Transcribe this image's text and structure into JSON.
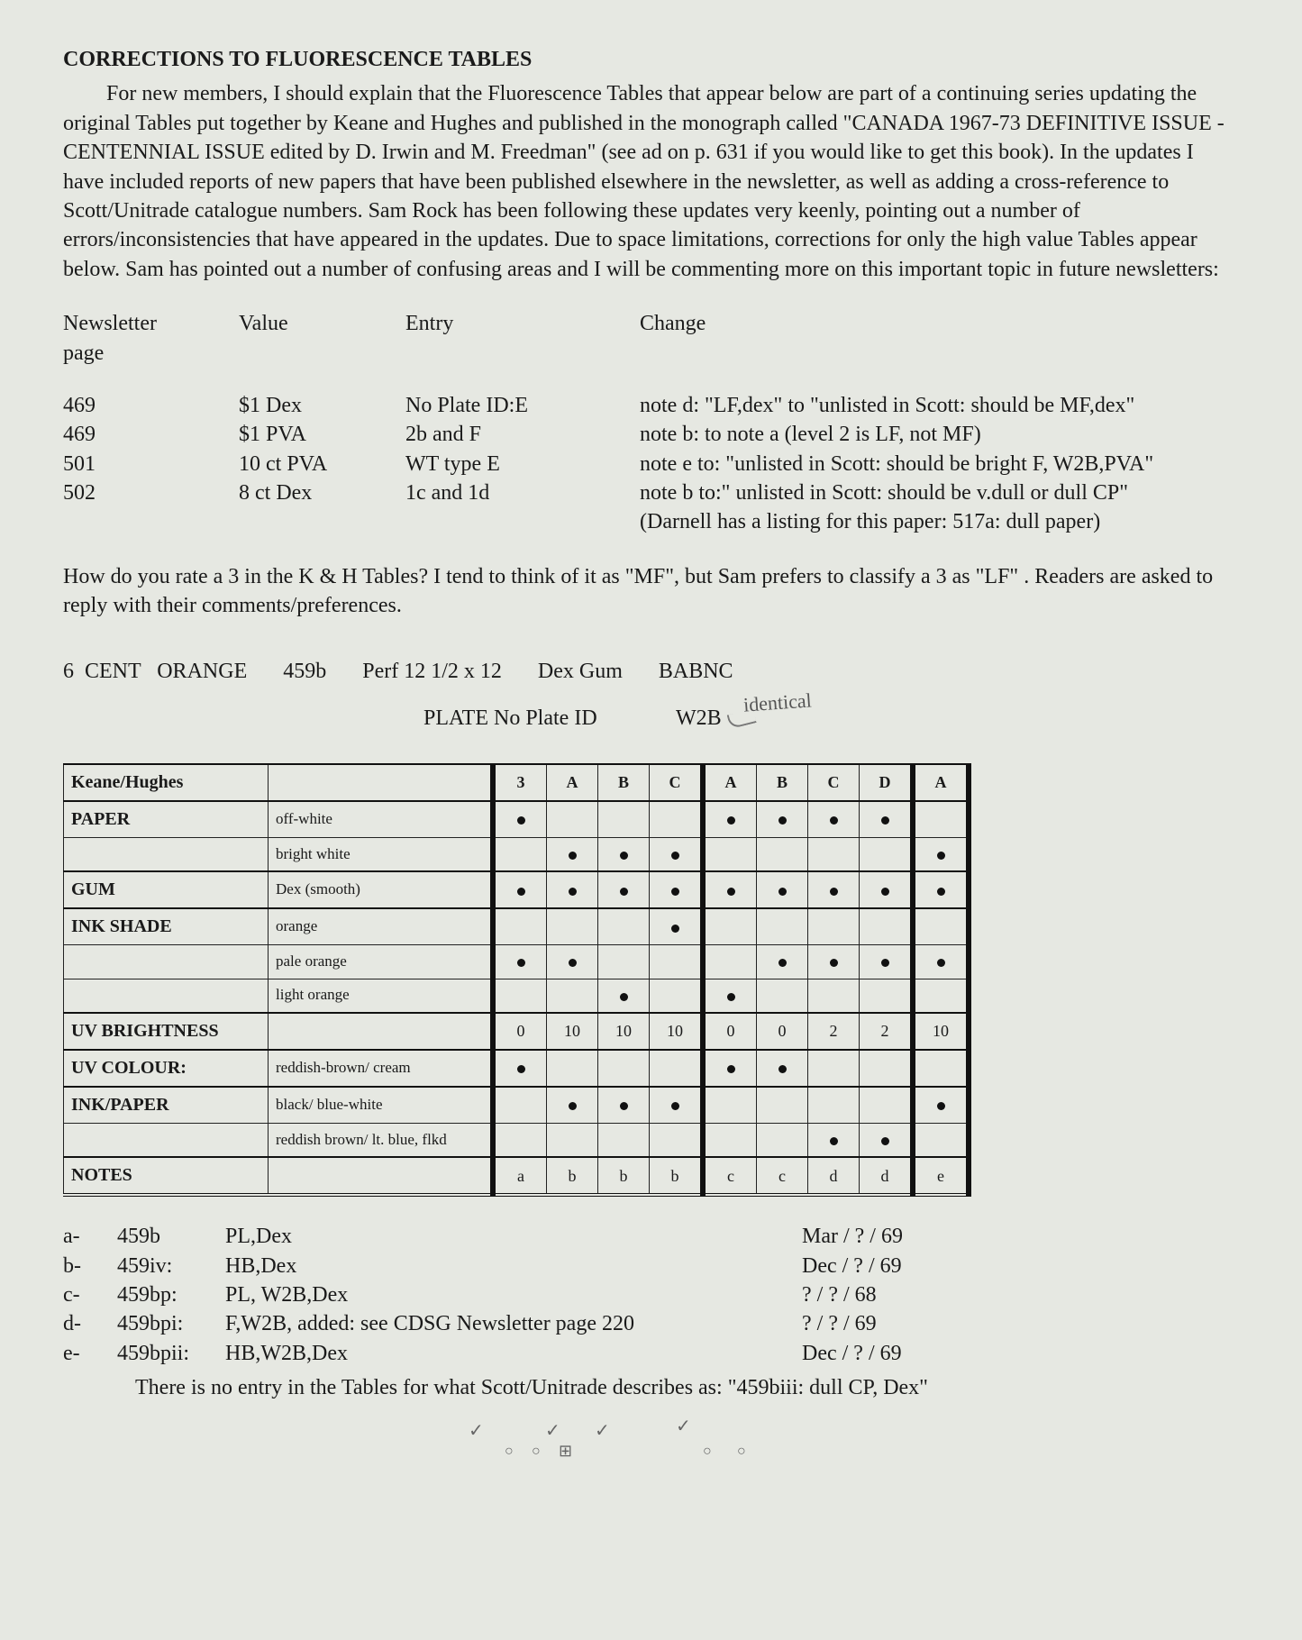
{
  "title": "CORRECTIONS TO FLUORESCENCE TABLES",
  "intro": "For new members, I should explain that the Fluorescence Tables that appear below are part of a continuing series updating the original Tables put together by Keane and Hughes and published in the monograph  called \"CANADA 1967-73 DEFINITIVE ISSUE - CENTENNIAL ISSUE edited by D. Irwin and M. Freedman\" (see ad on p. 631 if you would like to get this book). In the updates I have included reports of new papers that have been published elsewhere in the newsletter, as well as adding a cross-reference to Scott/Unitrade catalogue numbers. Sam Rock has been following these updates very keenly, pointing out a number of errors/inconsistencies that have appeared in the updates. Due to space limitations, corrections for only the high value Tables appear below. Sam has pointed out a number of confusing areas and I will be commenting more on this important topic in future newsletters:",
  "corrections": {
    "headers": {
      "c1a": "Newsletter",
      "c1b": "page",
      "c2": "Value",
      "c3": "Entry",
      "c4": "Change"
    },
    "rows": [
      {
        "page": "469",
        "value": "$1 Dex",
        "entry": "No Plate ID:E",
        "change": "note d: \"LF,dex\" to \"unlisted in Scott: should be MF,dex\""
      },
      {
        "page": "469",
        "value": "$1 PVA",
        "entry": "2b and F",
        "change": "note b: to note a (level 2 is LF, not MF)"
      },
      {
        "page": "501",
        "value": "10 ct PVA",
        "entry": "WT type E",
        "change": "note e to: \"unlisted in Scott: should be bright F, W2B,PVA\""
      },
      {
        "page": "502",
        "value": "8 ct Dex",
        "entry": "1c and 1d",
        "change": "note b to:\" unlisted in Scott: should be v.dull or dull CP\""
      }
    ],
    "extra": "(Darnell has a listing for this paper: 517a: dull paper)"
  },
  "question": "How do you rate a 3 in the K & H Tables? I tend to think of it as \"MF\", but Sam prefers to classify a 3 as \"LF\" . Readers are asked to reply with their comments/preferences.",
  "spec": {
    "s1": "6  CENT   ORANGE",
    "s2": "459b",
    "s3": "Perf 12 1/2 x 12",
    "s4": "Dex Gum",
    "s5": "BABNC"
  },
  "plate": {
    "label": "PLATE  No Plate ID",
    "w2b": "W2B",
    "hand": "identical"
  },
  "matrix": {
    "colHeaders": [
      "3",
      "A",
      "B",
      "C",
      "A",
      "B",
      "C",
      "D",
      "A"
    ],
    "rows": [
      {
        "cat": "Keane/Hughes",
        "desc": "",
        "isHeader": true
      },
      {
        "cat": "PAPER",
        "desc": "off-white",
        "dots": [
          1,
          0,
          0,
          0,
          1,
          1,
          1,
          1,
          0
        ]
      },
      {
        "cat": "",
        "desc": "bright white",
        "dots": [
          0,
          1,
          1,
          1,
          0,
          0,
          0,
          0,
          1
        ]
      },
      {
        "cat": "GUM",
        "desc": "Dex (smooth)",
        "dots": [
          1,
          1,
          1,
          1,
          1,
          1,
          1,
          1,
          1
        ]
      },
      {
        "cat": "INK SHADE",
        "desc": "orange",
        "dots": [
          0,
          0,
          0,
          1,
          0,
          0,
          0,
          0,
          0
        ]
      },
      {
        "cat": "",
        "desc": "pale orange",
        "dots": [
          1,
          1,
          0,
          0,
          0,
          1,
          1,
          1,
          1
        ]
      },
      {
        "cat": "",
        "desc": "light  orange",
        "dots": [
          0,
          0,
          1,
          0,
          1,
          0,
          0,
          0,
          0
        ]
      },
      {
        "cat": "UV BRIGHTNESS",
        "desc": "",
        "vals": [
          "0",
          "10",
          "10",
          "10",
          "0",
          "0",
          "2",
          "2",
          "10"
        ]
      },
      {
        "cat": "UV COLOUR:",
        "desc": "reddish-brown/ cream",
        "dots": [
          1,
          0,
          0,
          0,
          1,
          1,
          0,
          0,
          0
        ]
      },
      {
        "cat": "INK/PAPER",
        "desc": "black/ blue-white",
        "dots": [
          0,
          1,
          1,
          1,
          0,
          0,
          0,
          0,
          1
        ]
      },
      {
        "cat": "",
        "desc": "reddish brown/ lt. blue, flkd",
        "dots": [
          0,
          0,
          0,
          0,
          0,
          0,
          1,
          1,
          0
        ]
      },
      {
        "cat": "NOTES",
        "desc": "",
        "vals": [
          "a",
          "b",
          "b",
          "b",
          "c",
          "c",
          "d",
          "d",
          "e"
        ]
      }
    ]
  },
  "footnotes": [
    {
      "key": "a-",
      "code": "459b",
      "text": "PL,Dex",
      "date": "Mar /  ? / 69"
    },
    {
      "key": "b-",
      "code": "459iv:",
      "text": "HB,Dex",
      "date": "Dec / ?  / 69"
    },
    {
      "key": "c-",
      "code": "459bp:",
      "text": "PL, W2B,Dex",
      "date": "?    / ?  / 68"
    },
    {
      "key": "d-",
      "code": "459bpi:",
      "text": "F,W2B,  added: see CDSG Newsletter page 220",
      "date": "?   /   ? / 69"
    },
    {
      "key": "e-",
      "code": "459bpii:",
      "text": "HB,W2B,Dex",
      "date": "Dec / ?   / 69"
    }
  ],
  "finalNote": "There is no entry in the Tables for what Scott/Unitrade describes as: \"459biii:  dull CP, Dex\""
}
